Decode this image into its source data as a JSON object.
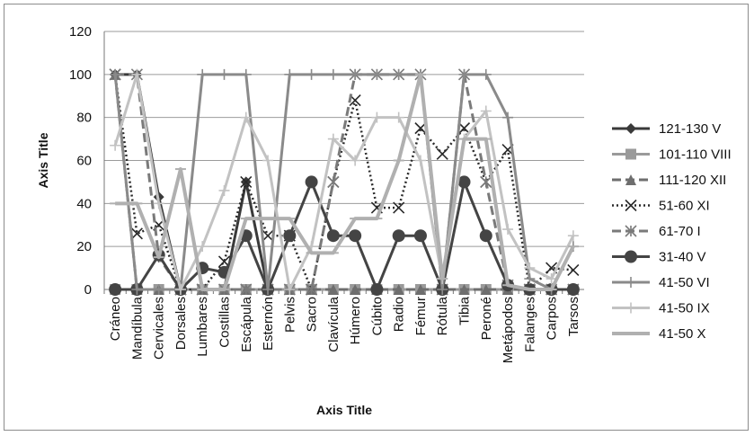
{
  "chart_data": {
    "type": "line",
    "xlabel": "Axis Title",
    "ylabel": "Axis Title",
    "ylim": [
      0,
      120
    ],
    "yticks": [
      0,
      20,
      40,
      60,
      80,
      100,
      120
    ],
    "grid": true,
    "legend_position": "right",
    "categories": [
      "Cráneo",
      "Mandíbula",
      "Cervicales",
      "Dorsales",
      "Lumbares",
      "Costillas",
      "Escápula",
      "Esternón",
      "Pelvis",
      "Sacro",
      "Clavícula",
      "Húmero",
      "Cúbito",
      "Radio",
      "Fémur",
      "Rótula",
      "Tibia",
      "Peroné",
      "Metápodos",
      "Falanges",
      "Carpos",
      "Tarsos"
    ],
    "series": [
      {
        "name": "121-130 V",
        "color": "#3a3a3a",
        "dash": "",
        "marker": "diamond",
        "width": 3,
        "values": [
          100,
          100,
          43,
          0,
          0,
          0,
          50,
          0,
          0,
          0,
          0,
          0,
          0,
          0,
          0,
          0,
          0,
          0,
          0,
          0,
          0,
          0
        ]
      },
      {
        "name": "101-110 VIII",
        "color": "#9a9a9a",
        "dash": "",
        "marker": "square",
        "width": 3,
        "values": [
          0,
          0,
          0,
          0,
          0,
          0,
          0,
          0,
          0,
          0,
          0,
          0,
          0,
          0,
          0,
          0,
          0,
          0,
          0,
          0,
          0,
          0
        ]
      },
      {
        "name": "111-120 XII",
        "color": "#6e6e6e",
        "dash": "10,5",
        "marker": "triangle",
        "width": 3,
        "values": [
          100,
          0,
          0,
          0,
          0,
          0,
          0,
          0,
          0,
          0,
          0,
          0,
          0,
          0,
          0,
          0,
          0,
          0,
          0,
          0,
          0,
          0
        ]
      },
      {
        "name": "51-60 XI",
        "color": "#2a2a2a",
        "dash": "2,3",
        "marker": "x",
        "width": 2.5,
        "values": [
          100,
          26,
          30,
          0,
          0,
          13,
          50,
          25,
          25,
          0,
          50,
          88,
          38,
          38,
          75,
          63,
          75,
          50,
          65,
          0,
          10,
          9
        ]
      },
      {
        "name": "61-70 I",
        "color": "#7a7a7a",
        "dash": "10,5",
        "marker": "star",
        "width": 3,
        "values": [
          100,
          100,
          15,
          0,
          0,
          0,
          0,
          0,
          0,
          0,
          50,
          100,
          100,
          100,
          100,
          0,
          100,
          50,
          2,
          0,
          0,
          0
        ]
      },
      {
        "name": "31-40 V",
        "color": "#444444",
        "dash": "",
        "marker": "circle",
        "width": 3,
        "values": [
          0,
          0,
          16,
          0,
          10,
          8,
          25,
          0,
          25,
          50,
          25,
          25,
          0,
          25,
          25,
          0,
          50,
          25,
          2,
          0,
          0,
          0
        ]
      },
      {
        "name": "41-50 VI",
        "color": "#8a8a8a",
        "dash": "",
        "marker": "plus",
        "width": 3,
        "values": [
          100,
          0,
          0,
          0,
          100,
          100,
          100,
          0,
          100,
          100,
          100,
          100,
          100,
          100,
          100,
          0,
          100,
          100,
          80,
          5,
          0,
          20
        ]
      },
      {
        "name": "41-50 IX",
        "color": "#c2c2c2",
        "dash": "",
        "marker": "plus",
        "width": 3,
        "values": [
          67,
          100,
          40,
          0,
          20,
          46,
          80,
          60,
          0,
          20,
          70,
          60,
          80,
          80,
          60,
          5,
          70,
          83,
          28,
          10,
          5,
          25
        ]
      },
      {
        "name": "41-50 X",
        "color": "#b0b0b0",
        "dash": "",
        "marker": "dash",
        "width": 4,
        "values": [
          40,
          40,
          15,
          56,
          0,
          0,
          33,
          33,
          33,
          17,
          17,
          33,
          33,
          60,
          100,
          5,
          70,
          70,
          2,
          0,
          0,
          20
        ]
      }
    ]
  }
}
